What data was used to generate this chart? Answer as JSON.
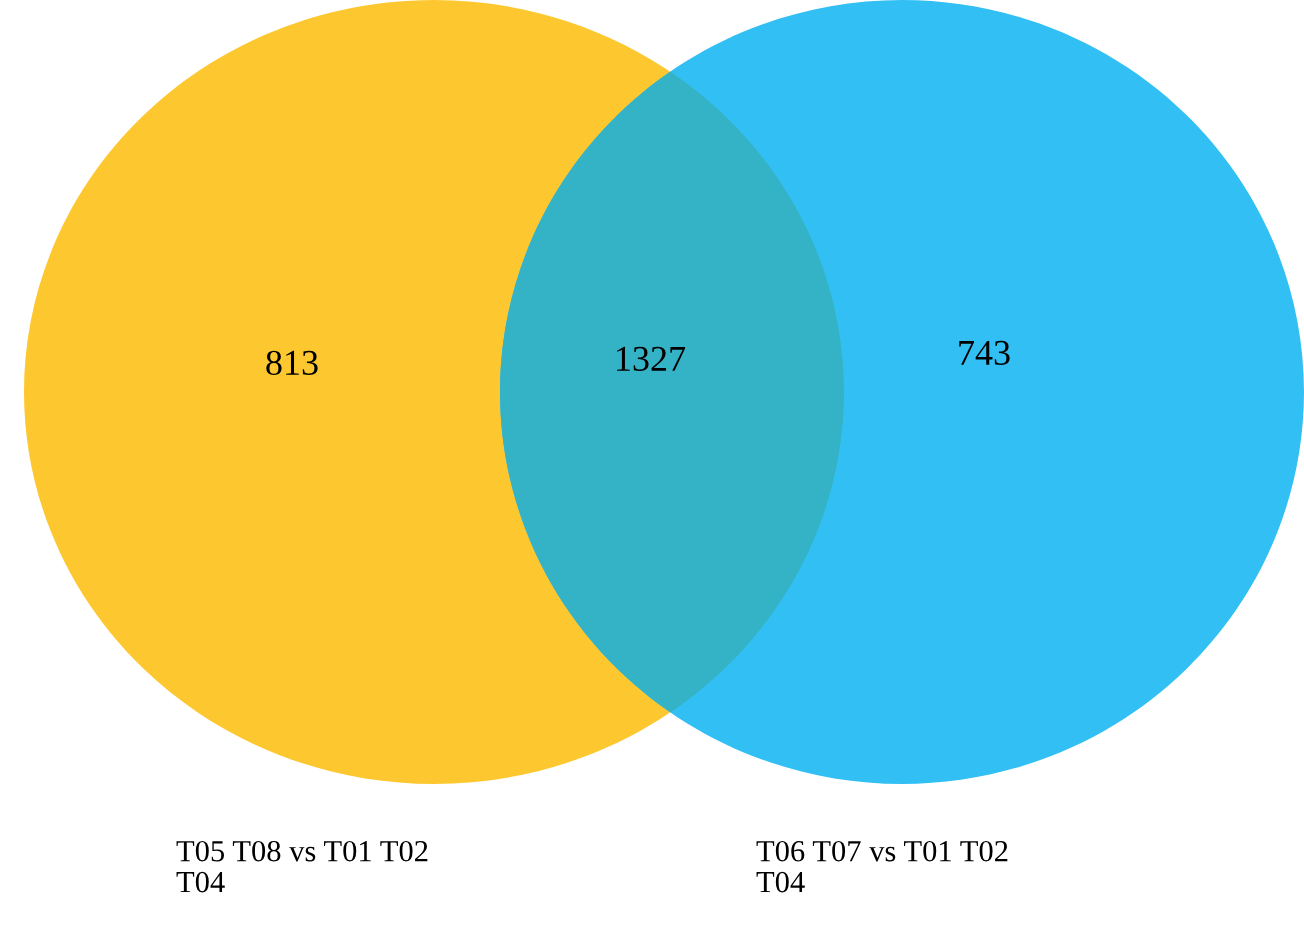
{
  "chart_data": {
    "type": "other",
    "categories": [
      "T05 T08 vs T01 T02\nT04",
      null,
      "T06 T07 vs T01 T02\nT04"
    ],
    "values": [
      813,
      1327,
      743
    ],
    "colors": [
      "#fdc82f",
      "#35b3c6",
      "#32bff3"
    ],
    "data_labels": true
  }
}
